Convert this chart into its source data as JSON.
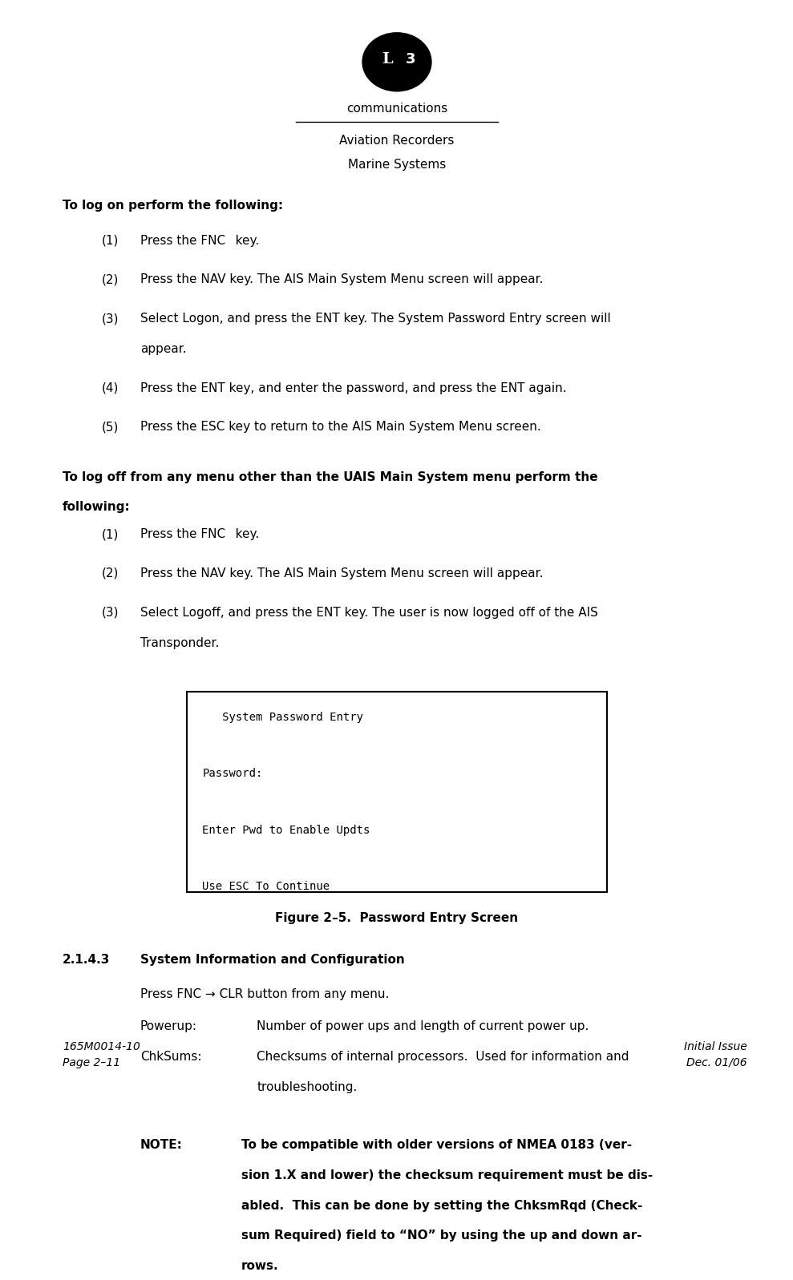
{
  "bg_color": "#ffffff",
  "text_color": "#000000",
  "page_width": 9.7,
  "page_height": 15.53,
  "logo_text": "communications",
  "subheader1": "Aviation Recorders",
  "subheader2": "Marine Systems",
  "section1_bold": "To log on perform the following:",
  "logon_items": [
    [
      "(1)",
      "Press the FNC  key."
    ],
    [
      "(2)",
      "Press the NAV key. The AIS Main System Menu screen will appear."
    ],
    [
      "(3)",
      "Select Logon, and press the ENT key. The System Password Entry screen will\nappear."
    ],
    [
      "(4)",
      "Press the ENT key, and enter the password, and press the ENT again."
    ],
    [
      "(5)",
      "Press the ESC key to return to the AIS Main System Menu screen."
    ]
  ],
  "section2_bold": "To log off from any menu other than the UAIS Main System menu perform the\nfollowing:",
  "logoff_items": [
    [
      "(1)",
      "Press the FNC  key."
    ],
    [
      "(2)",
      "Press the NAV key. The AIS Main System Menu screen will appear."
    ],
    [
      "(3)",
      "Select Logoff, and press the ENT key. The user is now logged off of the AIS\nTransponder."
    ]
  ],
  "screen_lines": [
    "   System Password Entry",
    "",
    "Password:",
    "",
    "Enter Pwd to Enable Updts",
    "",
    "Use ESC To Continue"
  ],
  "figure_caption": "Figure 2–5.  Password Entry Screen",
  "section3_num": "2.1.4.3",
  "section3_title": "System Information and Configuration",
  "section3_body1": "Press FNC → CLR button from any menu.",
  "section3_table": [
    [
      "Powerup:",
      "Number of power ups and length of current power up."
    ],
    [
      "ChkSums:",
      "Checksums of internal processors.  Used for information and\ntroubleshooting."
    ]
  ],
  "note_label": "NOTE:",
  "note_body": "To be compatible with older versions of NMEA 0183 (ver-\nsion 1.X and lower) the checksum requirement must be dis-\nabled.  This can be done by setting the ChksmRqd (Check-\nsum Required) field to “NO” by using the up and down ar-\nrows.",
  "footer_left1": "165M0014-10",
  "footer_left2": "Page 2–11",
  "footer_right1": "Initial Issue",
  "footer_right2": "Dec. 01/06"
}
